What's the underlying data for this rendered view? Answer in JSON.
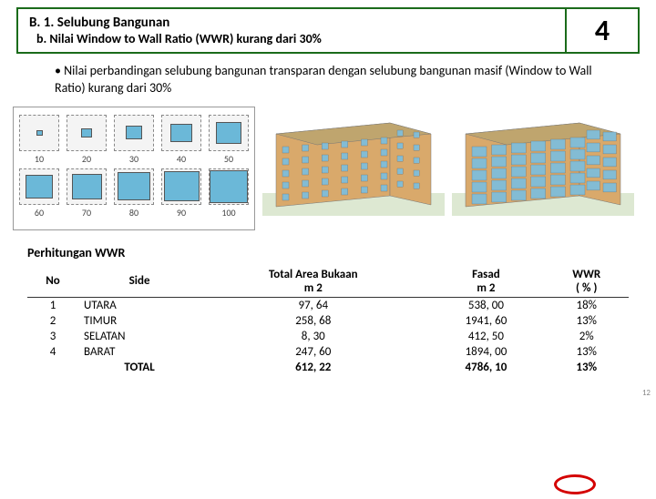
{
  "header": {
    "title": "B. 1. Selubung Bangunan",
    "subtitle": "b. Nilai Window to Wall Ratio (WWR) kurang dari 30%",
    "score": "4"
  },
  "bullet": "• Nilai perbandingan selubung bangunan transparan dengan selubung bangunan masif (Window to Wall Ratio) kurang dari 30%",
  "wwr_samples": {
    "row1": [
      "10",
      "20",
      "30",
      "40",
      "50"
    ],
    "row2": [
      "60",
      "70",
      "80",
      "90",
      "100"
    ],
    "sizes_row1": [
      7,
      12,
      18,
      24,
      28
    ],
    "sizes_row2": [
      30,
      33,
      36,
      39,
      42
    ]
  },
  "buildings": {
    "wall_color": "#d9a96b",
    "window_color": "#83bcd4",
    "small_win": {
      "w": 7,
      "h": 7
    },
    "large_win": {
      "w": 16,
      "h": 11
    }
  },
  "calc_title": "Perhitungan WWR",
  "table": {
    "headers": {
      "no": "No",
      "side": "Side",
      "bukaan_l1": "Total Area Bukaan",
      "bukaan_l2": "m 2",
      "fasad_l1": "Fasad",
      "fasad_l2": "m 2",
      "wwr_l1": "WWR",
      "wwr_l2": "( % )"
    },
    "rows": [
      {
        "no": "1",
        "side": "UTARA",
        "bukaan": "97, 64",
        "fasad": "538, 00",
        "wwr": "18%"
      },
      {
        "no": "2",
        "side": "TIMUR",
        "bukaan": "258, 68",
        "fasad": "1941, 60",
        "wwr": "13%"
      },
      {
        "no": "3",
        "side": "SELATAN",
        "bukaan": "8, 30",
        "fasad": "412, 50",
        "wwr": "2%"
      },
      {
        "no": "4",
        "side": "BARAT",
        "bukaan": "247, 60",
        "fasad": "1894, 00",
        "wwr": "13%"
      }
    ],
    "total": {
      "side": "TOTAL",
      "bukaan": "612, 22",
      "fasad": "4786, 10",
      "wwr": "13%"
    }
  },
  "page_num": "12"
}
